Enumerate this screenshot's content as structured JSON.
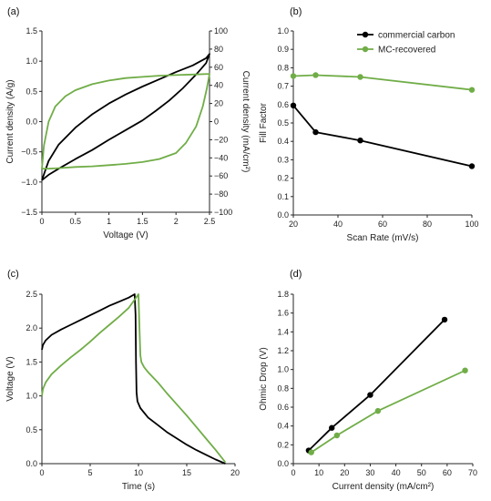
{
  "colors": {
    "black": "#000000",
    "green": "#70ad47",
    "grid": "#d9d9d9",
    "axis": "#262626"
  },
  "chart_data": [
    {
      "id": "a",
      "panel_label": "(a)",
      "type": "line",
      "xlabel": "Voltage (V)",
      "ylabel": "Current density (A/g)",
      "y2label": "Current density (mA/cm²)",
      "xlim": [
        0,
        2.5
      ],
      "ylim": [
        -1.5,
        1.5
      ],
      "y2lim": [
        -100,
        100
      ],
      "xticks": [
        0,
        0.5,
        1,
        1.5,
        2,
        2.5
      ],
      "yticks": [
        -1.5,
        -1.0,
        -0.5,
        0.0,
        0.5,
        1.0,
        1.5
      ],
      "y2ticks": [
        -100,
        -80,
        -60,
        -40,
        -20,
        0,
        20,
        40,
        60,
        80,
        100
      ],
      "grid": false,
      "series": [
        {
          "color": "black",
          "axis": "left",
          "x": [
            0,
            0.1,
            0.25,
            0.5,
            0.75,
            1,
            1.25,
            1.5,
            1.75,
            2,
            2.25,
            2.45,
            2.5,
            2.45,
            2.3,
            2.1,
            1.9,
            1.7,
            1.5,
            1.25,
            1,
            0.75,
            0.5,
            0.25,
            0.1,
            0
          ],
          "y": [
            -0.97,
            -0.65,
            -0.38,
            -0.1,
            0.12,
            0.3,
            0.45,
            0.58,
            0.7,
            0.82,
            0.93,
            1.05,
            1.12,
            0.97,
            0.78,
            0.55,
            0.35,
            0.18,
            0.02,
            -0.14,
            -0.3,
            -0.47,
            -0.62,
            -0.78,
            -0.88,
            -0.97
          ]
        },
        {
          "color": "green",
          "axis": "left",
          "x": [
            0,
            0.03,
            0.1,
            0.2,
            0.35,
            0.5,
            0.75,
            1,
            1.25,
            1.5,
            1.75,
            2,
            2.25,
            2.5,
            2.46,
            2.4,
            2.3,
            2.15,
            2,
            1.75,
            1.5,
            1.25,
            1,
            0.75,
            0.5,
            0.25,
            0.1,
            0
          ],
          "y": [
            -0.78,
            -0.4,
            0.0,
            0.25,
            0.42,
            0.52,
            0.62,
            0.68,
            0.72,
            0.74,
            0.76,
            0.77,
            0.78,
            0.79,
            0.55,
            0.25,
            -0.08,
            -0.35,
            -0.52,
            -0.62,
            -0.67,
            -0.7,
            -0.72,
            -0.74,
            -0.75,
            -0.77,
            -0.78,
            -0.78
          ]
        }
      ]
    },
    {
      "id": "b",
      "panel_label": "(b)",
      "type": "line",
      "xlabel": "Scan Rate (mV/s)",
      "ylabel": "Fill Factor",
      "xlim": [
        20,
        100
      ],
      "ylim": [
        0,
        1
      ],
      "xticks": [
        20,
        40,
        60,
        80,
        100
      ],
      "yticks": [
        0.0,
        0.1,
        0.2,
        0.3,
        0.4,
        0.5,
        0.6,
        0.7,
        0.8,
        0.9,
        1.0
      ],
      "grid": false,
      "legend": "top-right",
      "series": [
        {
          "name": "commercial carbon",
          "color": "black",
          "x": [
            20,
            30,
            50,
            100
          ],
          "y": [
            0.595,
            0.45,
            0.405,
            0.265
          ]
        },
        {
          "name": "MC-recovered",
          "color": "green",
          "x": [
            20,
            30,
            50,
            100
          ],
          "y": [
            0.755,
            0.76,
            0.75,
            0.68
          ]
        }
      ]
    },
    {
      "id": "c",
      "panel_label": "(c)",
      "type": "line",
      "xlabel": "Time (s)",
      "ylabel": "Voltage (V)",
      "xlim": [
        0,
        20
      ],
      "ylim": [
        0,
        2.5
      ],
      "xticks": [
        0,
        5,
        10,
        15,
        20
      ],
      "yticks": [
        0.0,
        0.5,
        1.0,
        1.5,
        2.0,
        2.5
      ],
      "grid": false,
      "series": [
        {
          "color": "black",
          "x": [
            0,
            0.1,
            0.4,
            1,
            2,
            3,
            4,
            5,
            6,
            7,
            8,
            9,
            9.6,
            9.7,
            9.75,
            9.8,
            9.9,
            10.2,
            11,
            12,
            13,
            14,
            15,
            16,
            17,
            18,
            19
          ],
          "y": [
            1.68,
            1.75,
            1.82,
            1.9,
            1.98,
            2.05,
            2.12,
            2.19,
            2.26,
            2.33,
            2.39,
            2.45,
            2.5,
            2.2,
            1.5,
            1.05,
            0.92,
            0.82,
            0.68,
            0.57,
            0.46,
            0.37,
            0.28,
            0.2,
            0.13,
            0.06,
            0
          ]
        },
        {
          "color": "green",
          "x": [
            0,
            0.1,
            0.4,
            1,
            2,
            3,
            4,
            5,
            6,
            7,
            8,
            9,
            9.6,
            10,
            10.1,
            10.2,
            10.3,
            10.6,
            11,
            12,
            13,
            14,
            15,
            16,
            17,
            18,
            19
          ],
          "y": [
            1.0,
            1.1,
            1.2,
            1.32,
            1.45,
            1.57,
            1.68,
            1.8,
            1.93,
            2.05,
            2.17,
            2.3,
            2.42,
            2.5,
            2.0,
            1.6,
            1.5,
            1.42,
            1.35,
            1.2,
            1.03,
            0.87,
            0.71,
            0.54,
            0.37,
            0.2,
            0.02
          ]
        }
      ]
    },
    {
      "id": "d",
      "panel_label": "(d)",
      "type": "line",
      "xlabel": "Current density (mA/cm²)",
      "ylabel": "Ohmic Drop (V)",
      "xlim": [
        0,
        70
      ],
      "ylim": [
        0,
        1.8
      ],
      "xticks": [
        0,
        10,
        20,
        30,
        40,
        50,
        60,
        70
      ],
      "yticks": [
        0.0,
        0.2,
        0.4,
        0.6,
        0.8,
        1.0,
        1.2,
        1.4,
        1.6,
        1.8
      ],
      "grid": false,
      "series": [
        {
          "color": "black",
          "x": [
            6,
            15,
            30,
            59
          ],
          "y": [
            0.14,
            0.38,
            0.73,
            1.53
          ]
        },
        {
          "color": "green",
          "x": [
            7,
            17,
            33,
            67
          ],
          "y": [
            0.12,
            0.3,
            0.56,
            0.99
          ]
        }
      ]
    }
  ]
}
